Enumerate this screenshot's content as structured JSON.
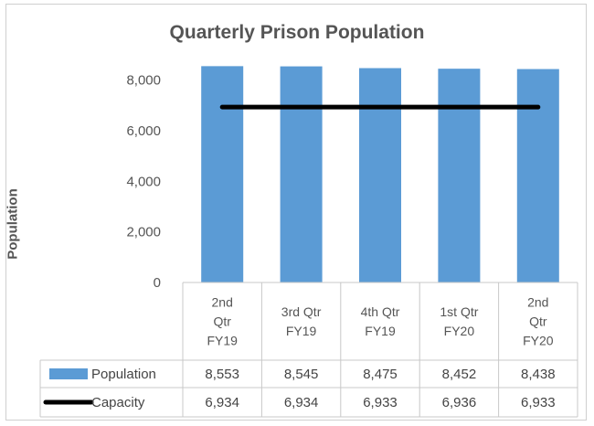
{
  "chart_data": {
    "type": "bar",
    "title": "Quarterly Prison Population",
    "ylabel": "Population",
    "xlabel": "",
    "ylim": [
      0,
      9000
    ],
    "yticks": [
      "0",
      "2,000",
      "4,000",
      "6,000",
      "8,000"
    ],
    "ytick_values": [
      0,
      2000,
      4000,
      6000,
      8000
    ],
    "categories": [
      [
        "2nd",
        "Qtr",
        "FY19"
      ],
      [
        "3rd Qtr",
        "FY19"
      ],
      [
        "4th Qtr",
        "FY19"
      ],
      [
        "1st Qtr",
        "FY20"
      ],
      [
        "2nd",
        "Qtr",
        "FY20"
      ]
    ],
    "series": [
      {
        "name": "Population",
        "type": "bar",
        "color": "#5b9bd5",
        "values": [
          8553,
          8545,
          8475,
          8452,
          8438
        ],
        "labels": [
          "8,553",
          "8,545",
          "8,475",
          "8,452",
          "8,438"
        ]
      },
      {
        "name": "Capacity",
        "type": "line",
        "color": "#000000",
        "values": [
          6934,
          6934,
          6933,
          6936,
          6933
        ],
        "labels": [
          "6,934",
          "6,934",
          "6,933",
          "6,936",
          "6,933"
        ]
      }
    ],
    "legend": "data-table",
    "grid": false
  }
}
